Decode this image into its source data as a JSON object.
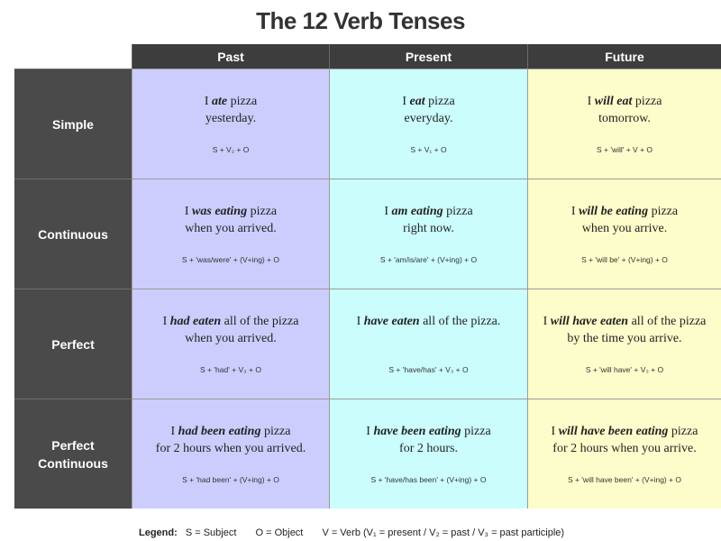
{
  "title": "The 12 Verb Tenses",
  "columns": [
    "Past",
    "Present",
    "Future"
  ],
  "rows": [
    {
      "label": "Simple",
      "cells": [
        {
          "pre": "I ",
          "verb": "ate",
          "post": " pizza",
          "line2": "yesterday.",
          "formula": "S + V₂ + O"
        },
        {
          "pre": "I ",
          "verb": "eat",
          "post": " pizza",
          "line2": "everyday.",
          "formula": "S + V₁ + O"
        },
        {
          "pre": "I ",
          "verb": "will eat",
          "post": " pizza",
          "line2": "tomorrow.",
          "formula": "S + 'will' + V + O"
        }
      ]
    },
    {
      "label": "Continuous",
      "cells": [
        {
          "pre": "I ",
          "verb": "was eating",
          "post": " pizza",
          "line2": "when you arrived.",
          "formula": "S + 'was/were' + (V+ing) + O"
        },
        {
          "pre": "I ",
          "verb": "am eating",
          "post": " pizza",
          "line2": "right now.",
          "formula": "S + 'am/is/are' + (V+ing) + O"
        },
        {
          "pre": "I ",
          "verb": "will be eating",
          "post": " pizza",
          "line2": "when you arrive.",
          "formula": "S + 'will be' + (V+ing) + O"
        }
      ]
    },
    {
      "label": "Perfect",
      "cells": [
        {
          "pre": "I ",
          "verb": "had eaten",
          "post": " all of the pizza",
          "line2": "when you arrived.",
          "formula": "S + 'had' + V₃ + O"
        },
        {
          "pre": "I ",
          "verb": "have eaten",
          "post": " all of the pizza.",
          "line2": "",
          "formula": "S + 'have/has' + V₃ + O"
        },
        {
          "pre": "I ",
          "verb": "will have eaten",
          "post": " all of the pizza",
          "line2": "by the time you arrive.",
          "formula": "S + 'will have' + V₃ + O"
        }
      ]
    },
    {
      "label_line1": "Perfect",
      "label_line2": "Continuous",
      "cells": [
        {
          "pre": "I ",
          "verb": "had been eating",
          "post": " pizza",
          "line2": "for 2 hours when you arrived.",
          "formula": "S + 'had been' + (V+ing) + O"
        },
        {
          "pre": "I ",
          "verb": "have been eating",
          "post": " pizza",
          "line2": "for 2 hours.",
          "formula": "S + 'have/has been' + (V+ing) + O"
        },
        {
          "pre": "I ",
          "verb": "will have been eating",
          "post": " pizza",
          "line2": "for 2 hours when you arrive.",
          "formula": "S + 'will have been' + (V+ing) + O"
        }
      ]
    }
  ],
  "legend": {
    "label": "Legend:",
    "subject": "S = Subject",
    "object": "O = Object",
    "verb": "V = Verb  (V₁ = present  /  V₂ = past  /  V₃ = past participle)"
  }
}
